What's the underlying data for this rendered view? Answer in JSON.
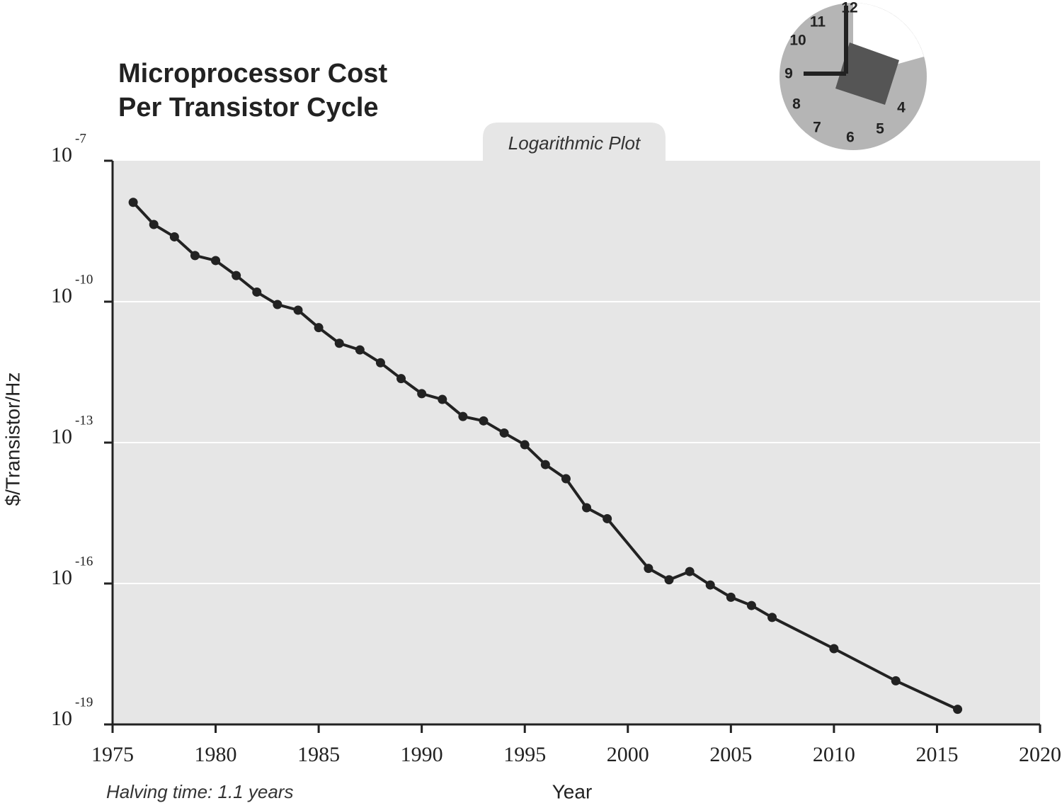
{
  "chart_data": {
    "type": "line",
    "title": "Microprocessor Cost Per Transistor Cycle",
    "subtitle": "Logarithmic Plot",
    "annotation": "Halving time: 1.1 years",
    "x_label": "Year",
    "y_label": "$/Transistor/Hz",
    "log_y": true,
    "grid": true,
    "x": [
      1976,
      1977,
      1978,
      1979,
      1980,
      1981,
      1982,
      1983,
      1984,
      1985,
      1986,
      1987,
      1988,
      1989,
      1990,
      1991,
      1992,
      1993,
      1994,
      1995,
      1996,
      1997,
      1998,
      1999,
      2001,
      2002,
      2003,
      2004,
      2005,
      2006,
      2007,
      2010,
      2013,
      2016
    ],
    "series": [
      {
        "name": null,
        "color": "#222222",
        "values": [
          1.3e-08,
          4.4e-09,
          2.4e-09,
          9.6e-10,
          7.5e-10,
          3.6e-10,
          1.6e-10,
          8.7e-11,
          6.6e-11,
          2.8e-11,
          1.3e-11,
          9.4e-12,
          5e-12,
          2.3e-12,
          1.1e-12,
          8.3e-13,
          3.6e-13,
          2.9e-13,
          1.6e-13,
          9e-14,
          3.4e-14,
          1.7e-14,
          4.1e-15,
          2.4e-15,
          2.1e-16,
          1.2e-16,
          1.8e-16,
          9.3e-17,
          5.1e-17,
          3.4e-17,
          1.9e-17,
          4.1e-18,
          8.5e-19,
          2.1e-19
        ]
      }
    ],
    "xlim": [
      1975,
      2020
    ],
    "xticks": [
      1975,
      1980,
      1985,
      1990,
      1995,
      2000,
      2005,
      2010,
      2015,
      2020
    ],
    "ylim": [
      1e-19,
      1e-07
    ],
    "yticks": [
      {
        "value": 1e-07,
        "label": "10",
        "sup": "-7"
      },
      {
        "value": 1e-10,
        "label": "10",
        "sup": "-10"
      },
      {
        "value": 1e-13,
        "label": "10",
        "sup": "-13"
      },
      {
        "value": 1e-16,
        "label": "10",
        "sup": "-16"
      },
      {
        "value": 1e-19,
        "label": "10",
        "sup": "-19"
      }
    ],
    "icon_labels": [
      "12",
      "11",
      "10",
      "9",
      "8",
      "7",
      "6",
      "5",
      "4"
    ]
  }
}
